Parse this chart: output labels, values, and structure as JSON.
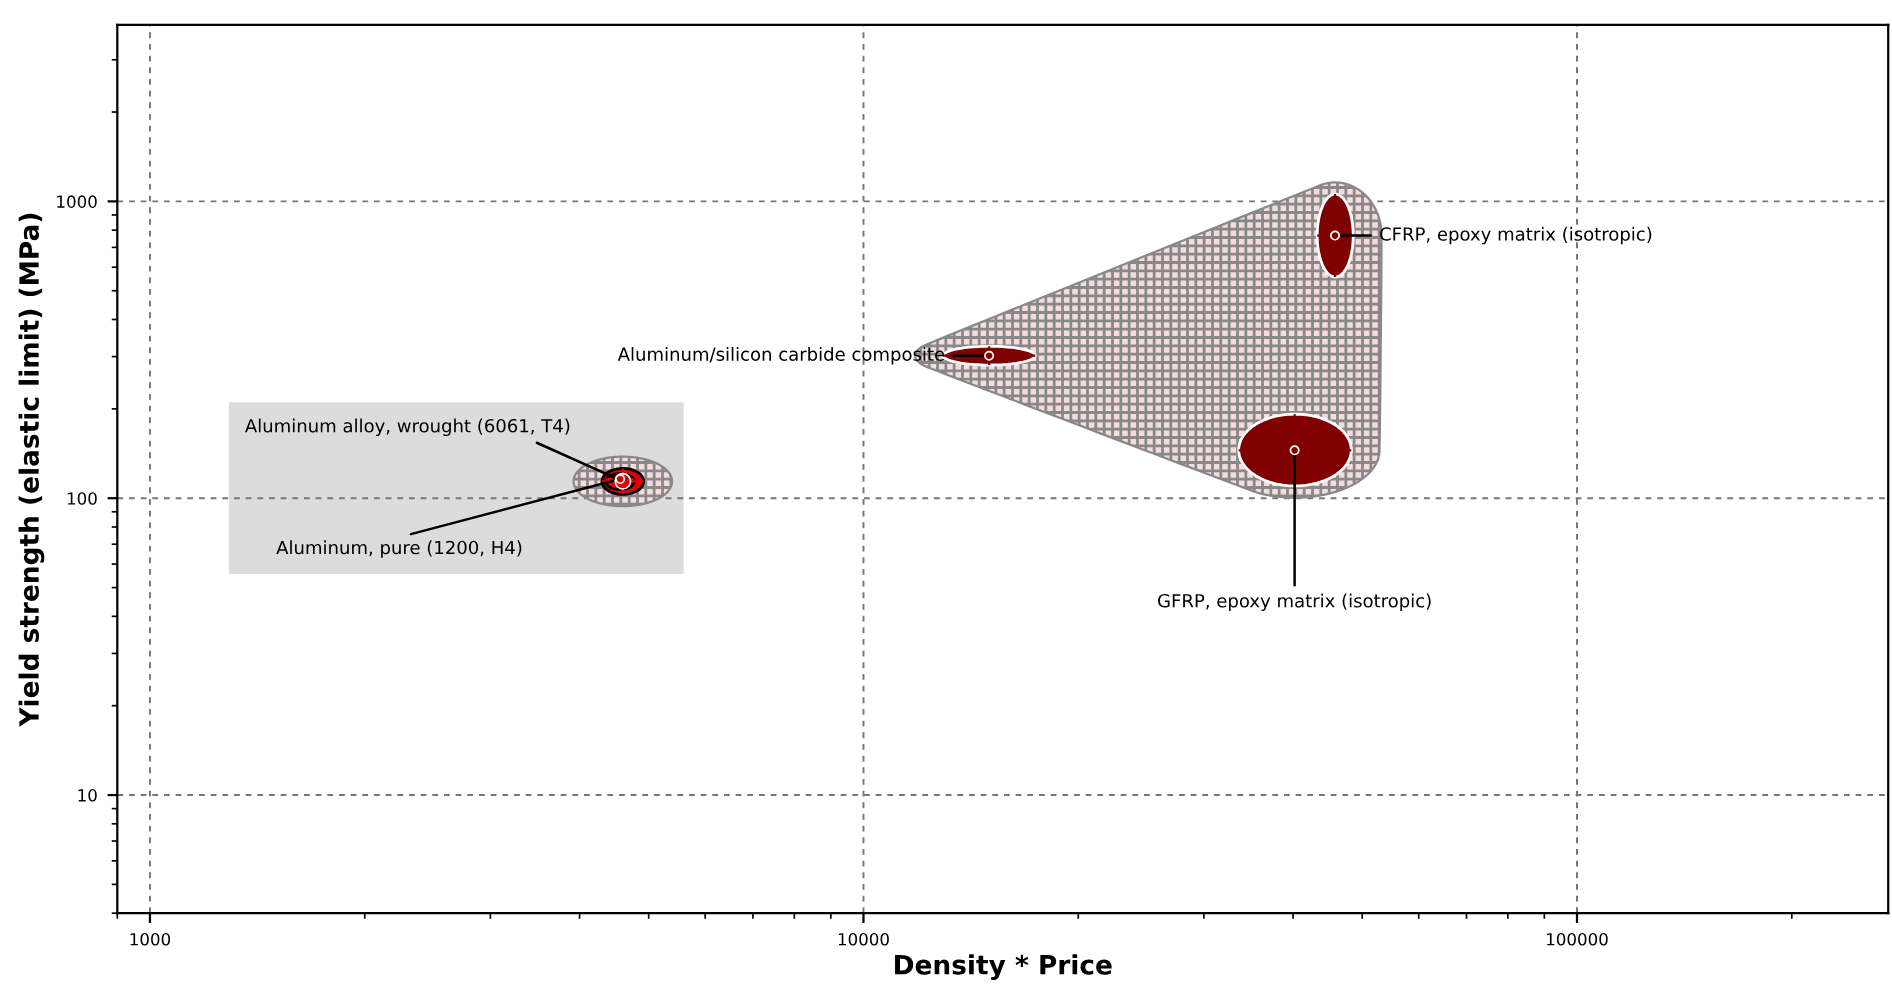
{
  "chart_data": {
    "type": "scatter",
    "xlabel": "Density * Price",
    "ylabel": "Yield strength (elastic limit) (MPa)",
    "log": "xy",
    "grid": true,
    "xlim": [
      900,
      273000
    ],
    "ylim": [
      4,
      3930
    ],
    "xticks": [
      1000,
      10000,
      100000
    ],
    "yticks": [
      10,
      100,
      1000
    ],
    "series": [
      {
        "color": "#e00000",
        "x": [
          4600,
          4560
        ],
        "values": [
          114,
          116
        ],
        "xerrors": [
          [
            4300,
            4920
          ],
          [
            4350,
            4770
          ]
        ],
        "errors": [
          [
            103,
            126
          ],
          [
            107,
            121
          ]
        ]
      },
      {
        "color": "#800000",
        "x": [
          15000,
          45800,
          40200
        ],
        "values": [
          302,
          767,
          145
        ],
        "xerrors": [
          [
            12940,
            17410
          ],
          [
            43240,
            48570
          ],
          [
            33560,
            48270
          ]
        ],
        "errors": [
          [
            281,
            325
          ],
          [
            556,
            1058
          ],
          [
            110,
            192
          ]
        ]
      }
    ],
    "annotations": [
      {
        "text": "Aluminum alloy, wrought (6061, T4)",
        "x": 4600,
        "y": 114
      },
      {
        "text": "Aluminum, pure (1200, H4)",
        "x": 4560,
        "y": 116
      },
      {
        "text": "Aluminum/silicon carbide composite",
        "x": 15000,
        "y": 302
      },
      {
        "text": "CFRP, epoxy matrix (isotropic)",
        "x": 45800,
        "y": 767
      },
      {
        "text": "GFRP, epoxy matrix (isotropic)",
        "x": 40200,
        "y": 145
      }
    ]
  }
}
